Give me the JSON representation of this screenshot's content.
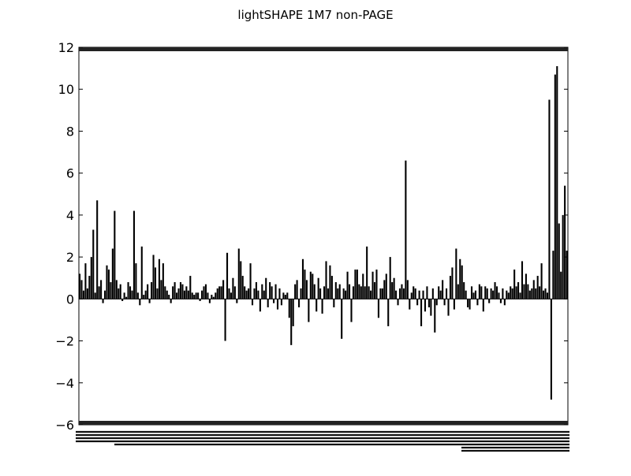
{
  "chart_data": {
    "type": "bar",
    "title": "lightSHAPE  1M7  non-PAGE",
    "xlabel": "",
    "ylabel": "",
    "ylim": [
      -6,
      12
    ],
    "yticks": [
      -6,
      -4,
      -2,
      0,
      2,
      4,
      6,
      8,
      10,
      12
    ],
    "ytick_labels": [
      "−6",
      "−4",
      "−2",
      "0",
      "2",
      "4",
      "6",
      "8",
      "10",
      "12"
    ],
    "grid": false,
    "series": [
      {
        "values": [
          1.2,
          0.9,
          0.4,
          1.7,
          0.5,
          1.1,
          2.0,
          3.3,
          0.3,
          4.7,
          0.6,
          0.9,
          -0.2,
          0.4,
          1.6,
          1.4,
          0.8,
          2.4,
          4.2,
          0.9,
          0.5,
          0.7,
          -0.1,
          0.3,
          0.1,
          0.8,
          0.6,
          0.4,
          4.2,
          1.7,
          0.3,
          -0.3,
          2.5,
          0.2,
          0.4,
          0.7,
          -0.2,
          0.8,
          2.1,
          1.5,
          0.5,
          1.9,
          0.9,
          1.7,
          0.6,
          0.4,
          0.2,
          -0.2,
          0.6,
          0.8,
          0.3,
          0.5,
          0.8,
          0.7,
          0.4,
          0.6,
          0.4,
          1.1,
          0.3,
          0.2,
          0.3,
          0.3,
          -0.1,
          0.4,
          0.6,
          0.7,
          0.3,
          -0.2,
          0.2,
          0.1,
          0.3,
          0.5,
          0.6,
          0.6,
          0.9,
          -2.0,
          2.2,
          0.5,
          0.3,
          1.0,
          0.6,
          -0.2,
          2.4,
          1.8,
          1.1,
          0.6,
          0.4,
          0.5,
          1.7,
          -0.3,
          0.5,
          0.8,
          0.4,
          -0.6,
          0.7,
          0.4,
          1.0,
          -0.4,
          0.8,
          0.6,
          -0.2,
          0.7,
          -0.5,
          0.5,
          -0.3,
          0.3,
          0.2,
          0.3,
          -0.9,
          -2.2,
          -1.3,
          0.7,
          0.9,
          -0.4,
          0.5,
          1.9,
          1.4,
          0.9,
          -1.1,
          1.3,
          1.2,
          0.7,
          -0.6,
          1.0,
          0.5,
          -0.7,
          0.6,
          1.8,
          0.5,
          1.6,
          1.1,
          -0.4,
          0.8,
          0.5,
          0.7,
          -1.9,
          0.5,
          0.4,
          1.3,
          0.7,
          -1.1,
          0.6,
          1.4,
          1.4,
          0.7,
          0.6,
          1.2,
          0.6,
          2.5,
          0.6,
          0.4,
          1.3,
          0.8,
          1.4,
          -0.9,
          0.5,
          0.5,
          0.9,
          1.2,
          -1.3,
          2.0,
          0.8,
          1.0,
          0.4,
          -0.3,
          0.5,
          0.7,
          0.5,
          6.6,
          0.9,
          -0.5,
          0.3,
          0.6,
          0.5,
          -0.3,
          0.4,
          -1.3,
          0.4,
          -0.6,
          0.6,
          -0.4,
          -0.8,
          0.5,
          -1.6,
          -0.3,
          0.6,
          0.4,
          0.9,
          -0.3,
          0.5,
          -0.8,
          1.1,
          1.5,
          -0.5,
          2.4,
          0.7,
          1.9,
          1.6,
          0.8,
          0.4,
          -0.4,
          -0.5,
          0.6,
          0.3,
          0.4,
          -0.3,
          0.7,
          0.6,
          -0.6,
          0.6,
          0.5,
          -0.2,
          0.5,
          0.4,
          0.8,
          0.6,
          0.3,
          -0.2,
          0.5,
          -0.3,
          0.4,
          0.3,
          0.6,
          0.5,
          1.4,
          0.6,
          0.8,
          0.3,
          1.8,
          0.7,
          1.2,
          0.7,
          0.4,
          0.5,
          0.9,
          0.5,
          1.1,
          0.6,
          1.7,
          0.4,
          0.5,
          0.3,
          9.5,
          -4.8,
          2.3,
          10.7,
          11.1,
          3.6,
          1.3,
          4.0,
          5.4,
          2.3
        ]
      }
    ]
  }
}
